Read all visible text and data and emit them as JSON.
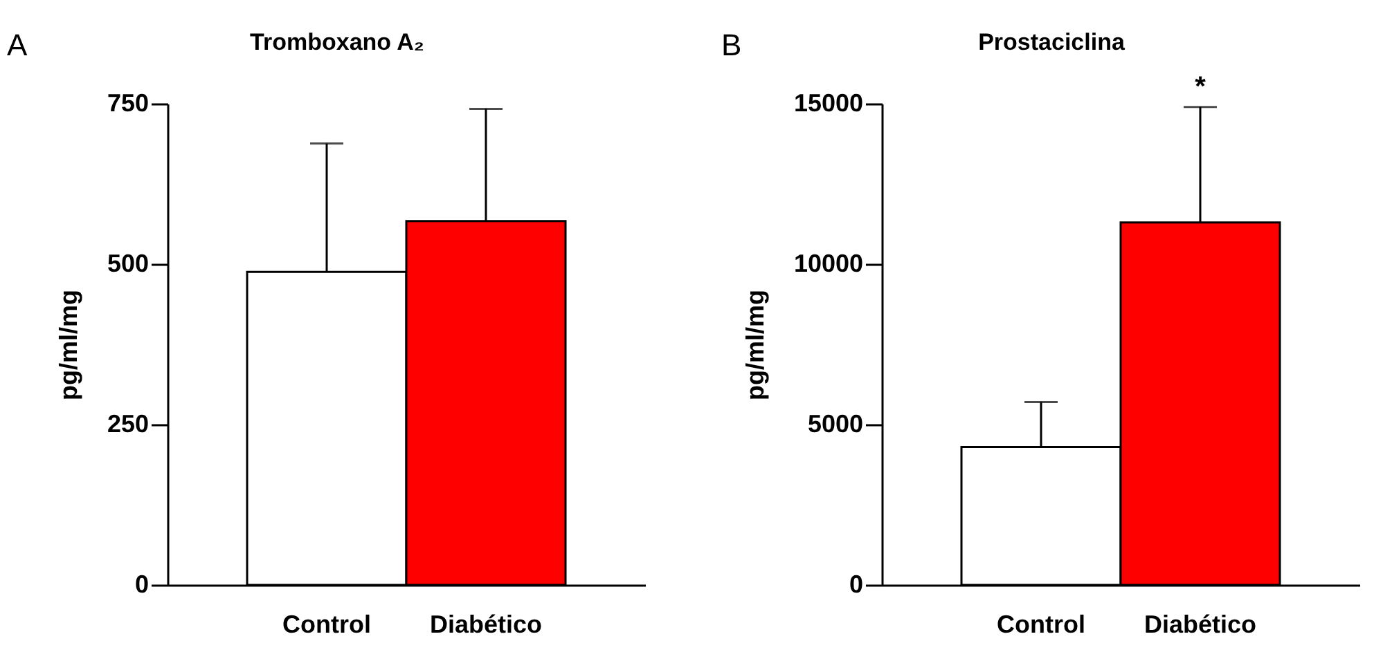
{
  "chart_data": [
    {
      "type": "bar",
      "title": "Tromboxano A₂",
      "ylabel": "pg/ml/mg",
      "categories": [
        "Control",
        "Diabético"
      ],
      "values": [
        488,
        567
      ],
      "colors": [
        "#ffffff",
        "#ff0000"
      ],
      "errors": [
        [
          488,
          688
        ],
        [
          567,
          742
        ]
      ],
      "ylim": [
        0,
        750
      ],
      "yticks": [
        0,
        250,
        500,
        750
      ],
      "annotations": [
        "A"
      ]
    },
    {
      "type": "bar",
      "title": "Prostaciclina",
      "ylabel": "pg/ml/mg",
      "categories": [
        "Control",
        "Diabético"
      ],
      "values": [
        4300,
        11300
      ],
      "colors": [
        "#ffffff",
        "#ff0000"
      ],
      "errors": [
        [
          4300,
          5700
        ],
        [
          11300,
          14900
        ]
      ],
      "ylim": [
        0,
        15000
      ],
      "yticks": [
        0,
        5000,
        10000,
        15000
      ],
      "annotations": [
        "B",
        "*"
      ]
    }
  ]
}
